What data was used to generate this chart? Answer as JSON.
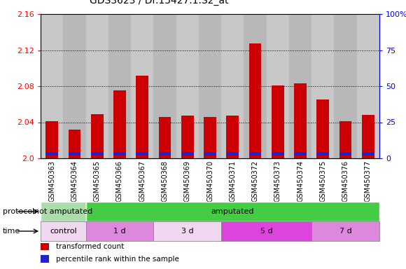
{
  "title": "GDS3623 / Dr.15427.1.S2_at",
  "samples": [
    "GSM450363",
    "GSM450364",
    "GSM450365",
    "GSM450366",
    "GSM450367",
    "GSM450368",
    "GSM450369",
    "GSM450370",
    "GSM450371",
    "GSM450372",
    "GSM450373",
    "GSM450374",
    "GSM450375",
    "GSM450376",
    "GSM450377"
  ],
  "red_values": [
    2.041,
    2.032,
    2.049,
    2.075,
    2.092,
    2.046,
    2.047,
    2.046,
    2.047,
    2.127,
    2.081,
    2.083,
    2.065,
    2.041,
    2.048
  ],
  "blue_percentile": [
    7,
    6,
    6,
    6,
    6,
    6,
    5,
    5,
    5,
    6,
    6,
    6,
    6,
    6,
    6
  ],
  "ymin": 2.0,
  "ymax": 2.16,
  "yticks": [
    2.0,
    2.04,
    2.08,
    2.12,
    2.16
  ],
  "y2ticks": [
    0,
    25,
    50,
    75,
    100
  ],
  "y2labels": [
    "0",
    "25",
    "50",
    "75",
    "100%"
  ],
  "bar_color": "#cc0000",
  "blue_color": "#2222cc",
  "col_bg_even": "#c8c8c8",
  "col_bg_odd": "#b8b8b8",
  "protocol_groups": [
    {
      "label": "not amputated",
      "start": 0,
      "end": 2,
      "color": "#aaddaa"
    },
    {
      "label": "amputated",
      "start": 2,
      "end": 15,
      "color": "#44cc44"
    }
  ],
  "time_groups": [
    {
      "label": "control",
      "start": 0,
      "end": 2,
      "color": "#f0d8f0"
    },
    {
      "label": "1 d",
      "start": 2,
      "end": 5,
      "color": "#dd88dd"
    },
    {
      "label": "3 d",
      "start": 5,
      "end": 8,
      "color": "#f0d8f0"
    },
    {
      "label": "5 d",
      "start": 8,
      "end": 12,
      "color": "#dd44dd"
    },
    {
      "label": "7 d",
      "start": 12,
      "end": 15,
      "color": "#dd88dd"
    }
  ],
  "legend_items": [
    {
      "label": "transformed count",
      "color": "#cc0000"
    },
    {
      "label": "percentile rank within the sample",
      "color": "#2222cc"
    }
  ]
}
